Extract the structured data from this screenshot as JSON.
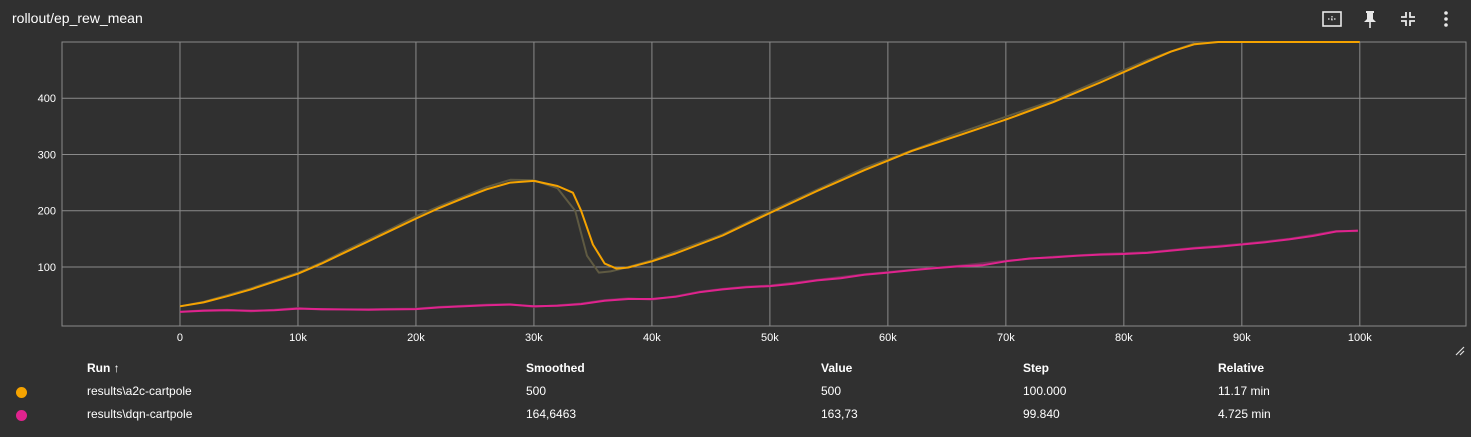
{
  "header": {
    "title": "rollout/ep_rew_mean",
    "icons": [
      "fit-domain-icon",
      "pin-icon",
      "collapse-icon",
      "more-vert-icon"
    ]
  },
  "colors": {
    "background": "#303030",
    "grid": "#8a8a8a",
    "a2c": "#f5a300",
    "a2c_raw": "#5f5a42",
    "dqn": "#e0238e",
    "dqn_raw": "#6a3352"
  },
  "chart_data": {
    "type": "line",
    "xlim": [
      -10000,
      109000
    ],
    "ylim": [
      -5,
      500
    ],
    "x_ticks": [
      0,
      10000,
      20000,
      30000,
      40000,
      50000,
      60000,
      70000,
      80000,
      90000,
      100000
    ],
    "x_tick_labels": [
      "0",
      "10k",
      "20k",
      "30k",
      "40k",
      "50k",
      "60k",
      "70k",
      "80k",
      "90k",
      "100k"
    ],
    "y_ticks": [
      100,
      200,
      300,
      400
    ],
    "y_tick_labels": [
      "100",
      "200",
      "300",
      "400"
    ],
    "grid": true,
    "series": [
      {
        "name": "results\\a2c-cartpole",
        "smoothed": [
          [
            0,
            30
          ],
          [
            2000,
            37
          ],
          [
            4000,
            48
          ],
          [
            6000,
            60
          ],
          [
            8000,
            74
          ],
          [
            10000,
            88
          ],
          [
            12000,
            106
          ],
          [
            14000,
            126
          ],
          [
            16000,
            146
          ],
          [
            18000,
            166
          ],
          [
            20000,
            186
          ],
          [
            22000,
            205
          ],
          [
            24000,
            222
          ],
          [
            26000,
            238
          ],
          [
            28000,
            250
          ],
          [
            30000,
            253
          ],
          [
            32000,
            244
          ],
          [
            33300,
            232
          ],
          [
            34000,
            200
          ],
          [
            35000,
            140
          ],
          [
            36000,
            106
          ],
          [
            37000,
            97
          ],
          [
            38000,
            99
          ],
          [
            40000,
            110
          ],
          [
            42000,
            124
          ],
          [
            46000,
            156
          ],
          [
            50000,
            196
          ],
          [
            54000,
            235
          ],
          [
            58000,
            272
          ],
          [
            62000,
            306
          ],
          [
            66000,
            334
          ],
          [
            70000,
            362
          ],
          [
            74000,
            393
          ],
          [
            78000,
            428
          ],
          [
            82000,
            465
          ],
          [
            84000,
            483
          ],
          [
            86000,
            496
          ],
          [
            88000,
            500
          ],
          [
            100000,
            500
          ]
        ],
        "raw": [
          [
            0,
            30
          ],
          [
            2000,
            38
          ],
          [
            4000,
            50
          ],
          [
            6000,
            62
          ],
          [
            8000,
            76
          ],
          [
            10000,
            90
          ],
          [
            12000,
            108
          ],
          [
            14000,
            129
          ],
          [
            16000,
            149
          ],
          [
            18000,
            169
          ],
          [
            20000,
            190
          ],
          [
            22000,
            208
          ],
          [
            24000,
            225
          ],
          [
            26000,
            242
          ],
          [
            28000,
            255
          ],
          [
            30000,
            254
          ],
          [
            32000,
            240
          ],
          [
            33500,
            200
          ],
          [
            34500,
            120
          ],
          [
            35500,
            90
          ],
          [
            36500,
            92
          ],
          [
            38000,
            100
          ],
          [
            40000,
            112
          ],
          [
            46000,
            158
          ],
          [
            50000,
            199
          ],
          [
            58000,
            276
          ],
          [
            66000,
            338
          ],
          [
            74000,
            396
          ],
          [
            82000,
            468
          ],
          [
            86000,
            498
          ],
          [
            88000,
            500
          ],
          [
            100000,
            500
          ]
        ]
      },
      {
        "name": "results\\dqn-cartpole",
        "smoothed": [
          [
            0,
            20
          ],
          [
            2000,
            22
          ],
          [
            4000,
            23
          ],
          [
            6000,
            22
          ],
          [
            8000,
            23
          ],
          [
            10000,
            26
          ],
          [
            12000,
            25
          ],
          [
            16000,
            24
          ],
          [
            20000,
            25
          ],
          [
            22000,
            28
          ],
          [
            26000,
            32
          ],
          [
            28000,
            33
          ],
          [
            30000,
            30
          ],
          [
            32000,
            31
          ],
          [
            34000,
            34
          ],
          [
            36000,
            40
          ],
          [
            38000,
            43
          ],
          [
            40000,
            43
          ],
          [
            42000,
            47
          ],
          [
            44000,
            55
          ],
          [
            46000,
            60
          ],
          [
            48000,
            64
          ],
          [
            50000,
            66
          ],
          [
            52000,
            70
          ],
          [
            54000,
            76
          ],
          [
            56000,
            80
          ],
          [
            58000,
            86
          ],
          [
            60000,
            90
          ],
          [
            62000,
            94
          ],
          [
            64000,
            98
          ],
          [
            66000,
            101
          ],
          [
            68000,
            103
          ],
          [
            70000,
            110
          ],
          [
            72000,
            115
          ],
          [
            74000,
            117
          ],
          [
            76000,
            120
          ],
          [
            78000,
            122
          ],
          [
            80000,
            123
          ],
          [
            82000,
            125
          ],
          [
            84000,
            129
          ],
          [
            86000,
            133
          ],
          [
            88000,
            136
          ],
          [
            90000,
            140
          ],
          [
            92000,
            144
          ],
          [
            94000,
            149
          ],
          [
            96000,
            155
          ],
          [
            98000,
            163
          ],
          [
            99840,
            164.6463
          ]
        ],
        "raw": [
          [
            0,
            20
          ],
          [
            2000,
            23
          ],
          [
            4000,
            24
          ],
          [
            6000,
            21
          ],
          [
            8000,
            24
          ],
          [
            10000,
            27
          ],
          [
            12000,
            24
          ],
          [
            16000,
            25
          ],
          [
            20000,
            26
          ],
          [
            22000,
            29
          ],
          [
            26000,
            33
          ],
          [
            28000,
            34
          ],
          [
            30000,
            29
          ],
          [
            32000,
            32
          ],
          [
            34000,
            35
          ],
          [
            36000,
            41
          ],
          [
            38000,
            44
          ],
          [
            40000,
            42
          ],
          [
            42000,
            48
          ],
          [
            44000,
            56
          ],
          [
            46000,
            61
          ],
          [
            48000,
            65
          ],
          [
            50000,
            67
          ],
          [
            54000,
            77
          ],
          [
            58000,
            87
          ],
          [
            62000,
            95
          ],
          [
            66000,
            102
          ],
          [
            70000,
            111
          ],
          [
            74000,
            118
          ],
          [
            78000,
            123
          ],
          [
            82000,
            126
          ],
          [
            86000,
            134
          ],
          [
            90000,
            141
          ],
          [
            94000,
            150
          ],
          [
            98000,
            164
          ],
          [
            99840,
            163.73
          ]
        ]
      }
    ]
  },
  "legend": {
    "headers": {
      "run": "Run ↑",
      "smoothed": "Smoothed",
      "value": "Value",
      "step": "Step",
      "relative": "Relative"
    },
    "rows": [
      {
        "run": "results\\a2c-cartpole",
        "smoothed": "500",
        "value": "500",
        "step": "100.000",
        "relative": "11.17 min",
        "color": "#f5a300"
      },
      {
        "run": "results\\dqn-cartpole",
        "smoothed": "164,6463",
        "value": "163,73",
        "step": "99.840",
        "relative": "4.725 min",
        "color": "#e0238e"
      }
    ]
  }
}
